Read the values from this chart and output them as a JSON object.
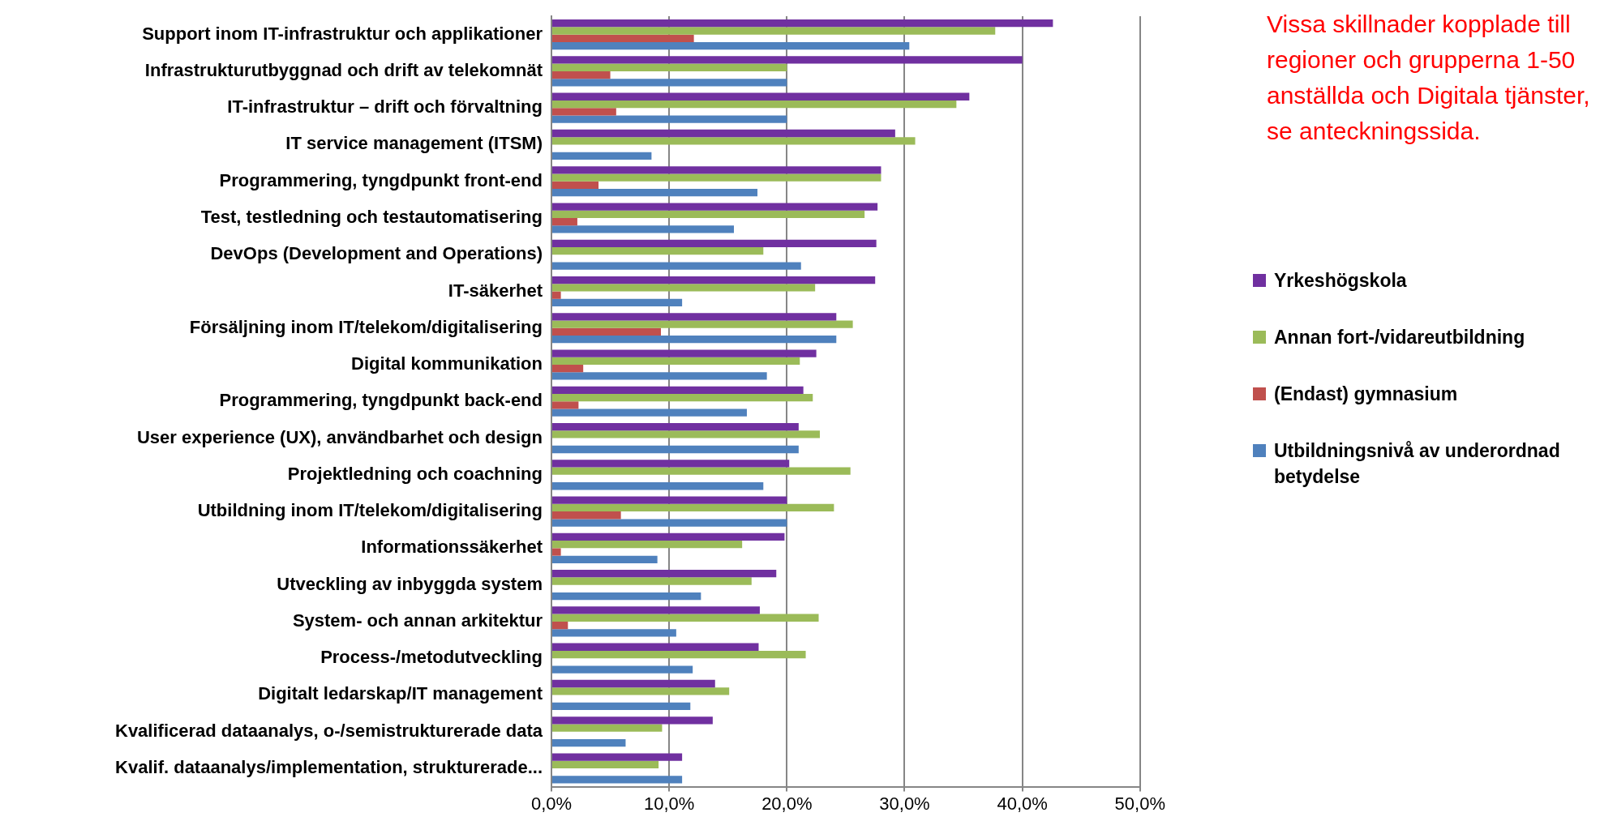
{
  "chart_data": {
    "type": "bar",
    "orientation": "horizontal",
    "categories": [
      "Support inom IT-infrastruktur och applikationer",
      "Infrastrukturutbyggnad och drift av telekomnät",
      "IT-infrastruktur – drift och förvaltning",
      "IT service management (ITSM)",
      "Programmering, tyngdpunkt front-end",
      "Test, testledning och testautomatisering",
      "DevOps (Development and Operations)",
      "IT-säkerhet",
      "Försäljning inom IT/telekom/digitalisering",
      "Digital kommunikation",
      "Programmering, tyngdpunkt back-end",
      "User experience (UX), användbarhet och design",
      "Projektledning och coachning",
      "Utbildning inom IT/telekom/digitalisering",
      "Informationssäkerhet",
      "Utveckling av inbyggda system",
      "System- och annan arkitektur",
      "Process-/metodutveckling",
      "Digitalt ledarskap/IT management",
      "Kvalificerad dataanalys, o-/semistrukturerade data",
      "Kvalif. dataanalys/implementation, strukturerade..."
    ],
    "series": [
      {
        "name": "Yrkeshögskola",
        "color": "#7030a0",
        "values": [
          42.6,
          40.0,
          35.5,
          29.2,
          28.0,
          27.7,
          27.6,
          27.5,
          24.2,
          22.5,
          21.4,
          21.0,
          20.2,
          20.0,
          19.8,
          19.1,
          17.7,
          17.6,
          13.9,
          13.7,
          11.1
        ]
      },
      {
        "name": "Annan fort-/vidareutbildning",
        "color": "#9bbb59",
        "values": [
          37.7,
          20.0,
          34.4,
          30.9,
          28.0,
          26.6,
          18.0,
          22.4,
          25.6,
          21.1,
          22.2,
          22.8,
          25.4,
          24.0,
          16.2,
          17.0,
          22.7,
          21.6,
          15.1,
          9.4,
          9.1
        ]
      },
      {
        "name": "(Endast) gymnasium",
        "color": "#c0504d",
        "values": [
          12.1,
          5.0,
          5.5,
          null,
          4.0,
          2.2,
          null,
          0.8,
          9.3,
          2.7,
          2.3,
          null,
          null,
          5.9,
          0.8,
          null,
          1.4,
          null,
          null,
          null,
          null
        ]
      },
      {
        "name": "Utbildningsnivå av underordnad betydelse",
        "color": "#4f81bd",
        "values": [
          30.4,
          20.0,
          20.0,
          8.5,
          17.5,
          15.5,
          21.2,
          11.1,
          24.2,
          18.3,
          16.6,
          21.0,
          18.0,
          20.0,
          9.0,
          12.7,
          10.6,
          12.0,
          11.8,
          6.3,
          11.1
        ]
      }
    ],
    "xlim": [
      0,
      50
    ],
    "xticks": [
      {
        "value": 0,
        "label": "0,0%"
      },
      {
        "value": 10,
        "label": "10,0%"
      },
      {
        "value": 20,
        "label": "20,0%"
      },
      {
        "value": 30,
        "label": "30,0%"
      },
      {
        "value": 40,
        "label": "40,0%"
      },
      {
        "value": 50,
        "label": "50,0%"
      }
    ],
    "grid": "x",
    "legend": "right",
    "annotations": [
      "Vissa skillnader kopplade till regioner och grupperna 1-50 anställda och Digitala tjänster, se anteckningssida."
    ]
  }
}
